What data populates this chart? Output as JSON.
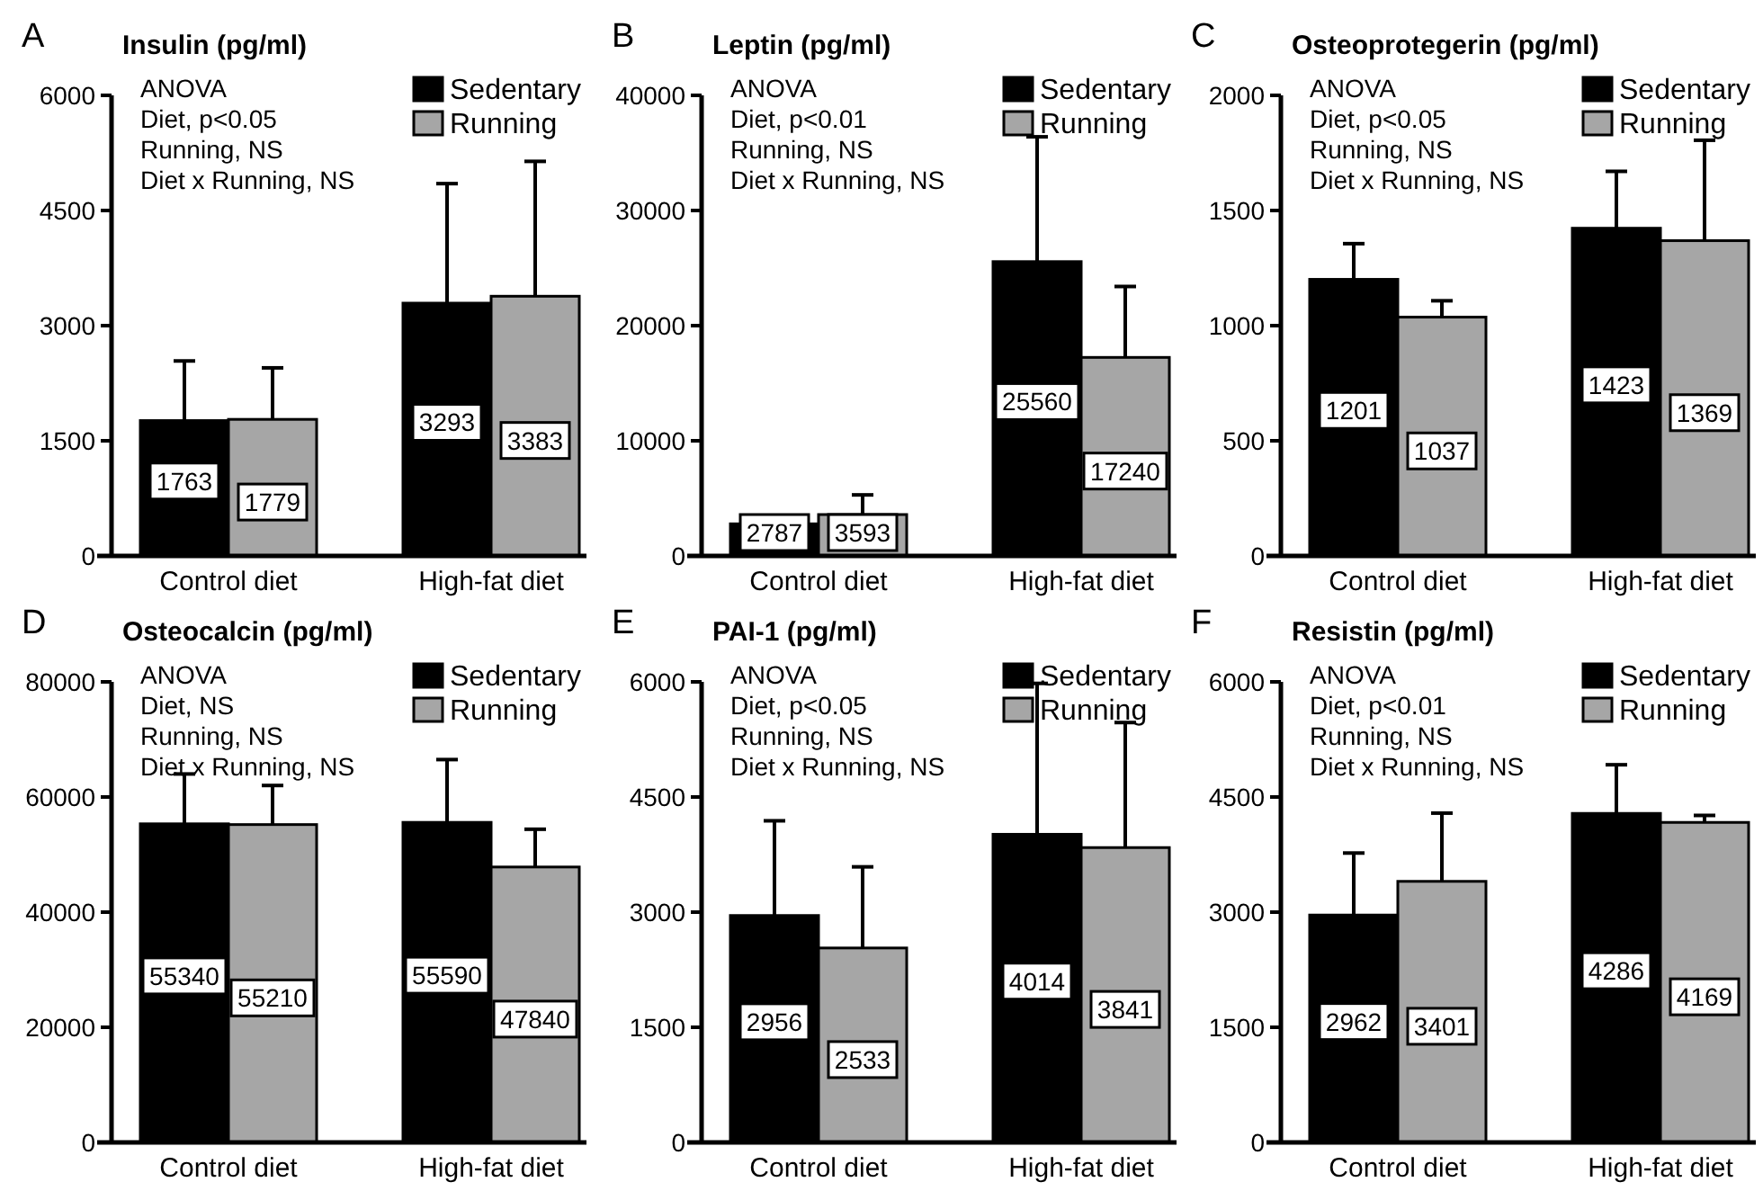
{
  "chart_data": [
    {
      "type": "bar",
      "title": "Insulin (pg/ml)",
      "annotations": [
        "A",
        "ANOVA",
        "Diet, p<0.05",
        "Running, NS",
        "Diet x Running, NS"
      ],
      "categories": [
        "Control diet",
        "High-fat diet"
      ],
      "series": [
        {
          "name": "Sedentary",
          "color": "#000000",
          "values": [
            1763,
            3293
          ],
          "errors": [
            [
              1763,
              2540
            ],
            [
              3293,
              4850
            ]
          ]
        },
        {
          "name": "Running",
          "color": "#a6a6a6",
          "values": [
            1779,
            3383
          ],
          "errors": [
            [
              1779,
              2450
            ],
            [
              3383,
              5140
            ]
          ]
        }
      ],
      "ylim": [
        0,
        6000
      ],
      "yticks": [
        0,
        1500,
        3000,
        4500,
        6000
      ],
      "data_labels": true,
      "legend": "top right",
      "grid": false
    },
    {
      "type": "bar",
      "title": "Leptin (pg/ml)",
      "annotations": [
        "B",
        "ANOVA",
        "Diet, p<0.01",
        "Running, NS",
        "Diet x Running, NS"
      ],
      "categories": [
        "Control diet",
        "High-fat diet"
      ],
      "series": [
        {
          "name": "Sedentary",
          "color": "#000000",
          "values": [
            2787,
            25560
          ],
          "errors": [
            [
              2787,
              3400
            ],
            [
              25560,
              36400
            ]
          ]
        },
        {
          "name": "Running",
          "color": "#a6a6a6",
          "values": [
            3593,
            17240
          ],
          "errors": [
            [
              3593,
              5300
            ],
            [
              17240,
              23400
            ]
          ]
        }
      ],
      "ylim": [
        0,
        40000
      ],
      "yticks": [
        0,
        10000,
        20000,
        30000,
        40000
      ],
      "data_labels": true,
      "legend": "top right",
      "grid": false
    },
    {
      "type": "bar",
      "title": "Osteoprotegerin (pg/ml)",
      "annotations": [
        "C",
        "ANOVA",
        "Diet, p<0.05",
        "Running, NS",
        "Diet x Running, NS"
      ],
      "categories": [
        "Control diet",
        "High-fat diet"
      ],
      "series": [
        {
          "name": "Sedentary",
          "color": "#000000",
          "values": [
            1201,
            1423
          ],
          "errors": [
            [
              1201,
              1356
            ],
            [
              1423,
              1670
            ]
          ]
        },
        {
          "name": "Running",
          "color": "#a6a6a6",
          "values": [
            1037,
            1369
          ],
          "errors": [
            [
              1037,
              1108
            ],
            [
              1369,
              1805
            ]
          ]
        }
      ],
      "ylim": [
        0,
        2000
      ],
      "yticks": [
        0,
        500,
        1000,
        1500,
        2000
      ],
      "data_labels": true,
      "legend": "top right",
      "grid": false
    },
    {
      "type": "bar",
      "title": "Osteocalcin (pg/ml)",
      "annotations": [
        "D",
        "ANOVA",
        "Diet, NS",
        "Running, NS",
        "Diet x Running, NS"
      ],
      "categories": [
        "Control diet",
        "High-fat diet"
      ],
      "series": [
        {
          "name": "Sedentary",
          "color": "#000000",
          "values": [
            55340,
            55590
          ],
          "errors": [
            [
              55340,
              64000
            ],
            [
              55590,
              66500
            ]
          ]
        },
        {
          "name": "Running",
          "color": "#a6a6a6",
          "values": [
            55210,
            47840
          ],
          "errors": [
            [
              55210,
              62000
            ],
            [
              47840,
              54400
            ]
          ]
        }
      ],
      "ylim": [
        0,
        80000
      ],
      "yticks": [
        0,
        20000,
        40000,
        60000,
        80000
      ],
      "data_labels": true,
      "legend": "top right",
      "grid": false
    },
    {
      "type": "bar",
      "title": "PAI-1 (pg/ml)",
      "annotations": [
        "E",
        "ANOVA",
        "Diet, p<0.05",
        "Running, NS",
        "Diet x Running, NS"
      ],
      "categories": [
        "Control diet",
        "High-fat diet"
      ],
      "series": [
        {
          "name": "Sedentary",
          "color": "#000000",
          "values": [
            2956,
            4014
          ],
          "errors": [
            [
              2956,
              4190
            ],
            [
              4014,
              5980
            ]
          ]
        },
        {
          "name": "Running",
          "color": "#a6a6a6",
          "values": [
            2533,
            3841
          ],
          "errors": [
            [
              2533,
              3590
            ],
            [
              3841,
              5470
            ]
          ]
        }
      ],
      "ylim": [
        0,
        6000
      ],
      "yticks": [
        0,
        1500,
        3000,
        4500,
        6000
      ],
      "data_labels": true,
      "legend": "top right",
      "grid": false
    },
    {
      "type": "bar",
      "title": "Resistin (pg/ml)",
      "annotations": [
        "F",
        "ANOVA",
        "Diet, p<0.01",
        "Running, NS",
        "Diet x Running, NS"
      ],
      "categories": [
        "Control diet",
        "High-fat diet"
      ],
      "series": [
        {
          "name": "Sedentary",
          "color": "#000000",
          "values": [
            2962,
            4286
          ],
          "errors": [
            [
              2962,
              3770
            ],
            [
              4286,
              4920
            ]
          ]
        },
        {
          "name": "Running",
          "color": "#a6a6a6",
          "values": [
            3401,
            4169
          ],
          "errors": [
            [
              3401,
              4290
            ],
            [
              4169,
              4260
            ]
          ]
        }
      ],
      "ylim": [
        0,
        6000
      ],
      "yticks": [
        0,
        1500,
        3000,
        4500,
        6000
      ],
      "data_labels": true,
      "legend": "top right",
      "grid": false
    }
  ]
}
